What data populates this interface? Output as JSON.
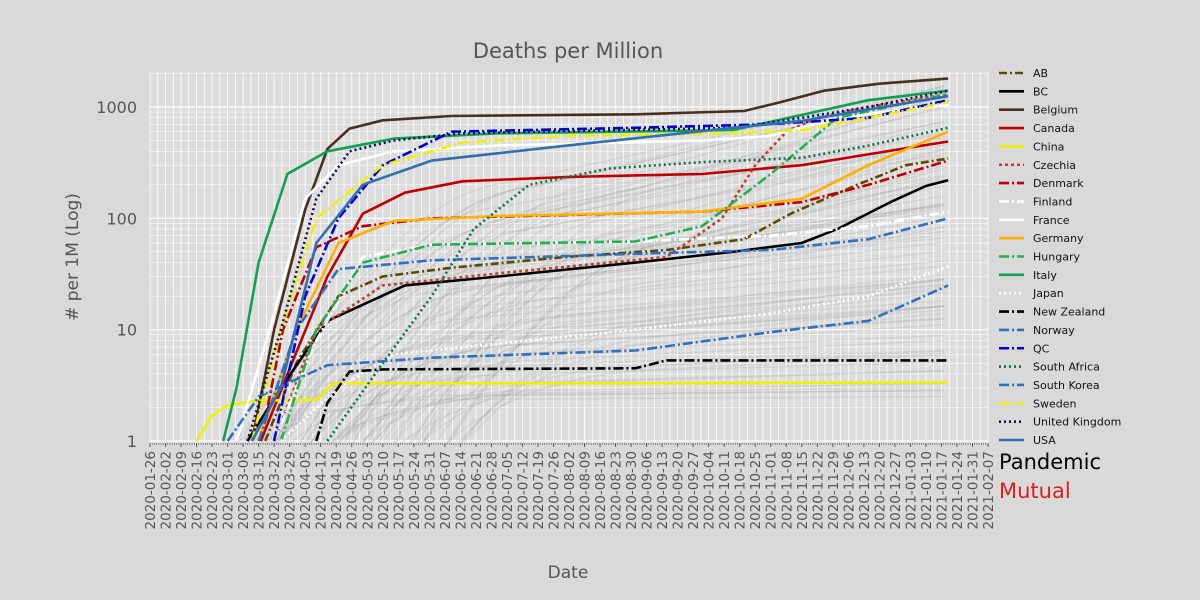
{
  "chart_data": {
    "type": "line",
    "title": "Deaths per Million",
    "xlabel": "Date",
    "ylabel": "# per 1M (Log)",
    "yscale": "log",
    "ylim": [
      1,
      2000
    ],
    "yticks": [
      "1",
      "10",
      "100",
      "1000"
    ],
    "xlim": [
      "2020-01-26",
      "2021-02-07"
    ],
    "xticks": [
      "2020-01-26",
      "2020-02-02",
      "2020-02-09",
      "2020-02-16",
      "2020-02-23",
      "2020-03-01",
      "2020-03-08",
      "2020-03-15",
      "2020-03-22",
      "2020-03-29",
      "2020-04-05",
      "2020-04-12",
      "2020-04-19",
      "2020-04-26",
      "2020-05-03",
      "2020-05-10",
      "2020-05-17",
      "2020-05-24",
      "2020-05-31",
      "2020-06-07",
      "2020-06-14",
      "2020-06-21",
      "2020-06-28",
      "2020-07-05",
      "2020-07-12",
      "2020-07-19",
      "2020-07-26",
      "2020-08-02",
      "2020-08-09",
      "2020-08-16",
      "2020-08-23",
      "2020-08-30",
      "2020-09-06",
      "2020-09-13",
      "2020-09-20",
      "2020-09-27",
      "2020-10-04",
      "2020-10-11",
      "2020-10-18",
      "2020-10-25",
      "2020-11-01",
      "2020-11-08",
      "2020-11-15",
      "2020-11-22",
      "2020-11-29",
      "2020-12-06",
      "2020-12-13",
      "2020-12-20",
      "2020-12-27",
      "2021-01-03",
      "2021-01-10",
      "2021-01-17",
      "2021-01-24",
      "2021-01-31",
      "2021-02-07"
    ],
    "grid": true,
    "legend_position": "right",
    "series": [
      {
        "name": "AB",
        "color": "#5c4a00",
        "dash": "8 3 2 3",
        "x": [
          "2020-03-18",
          "2020-04-01",
          "2020-04-20",
          "2020-05-10",
          "2020-06-10",
          "2020-08-01",
          "2020-09-15",
          "2020-10-20",
          "2020-11-10",
          "2020-12-10",
          "2021-01-01",
          "2021-01-20"
        ],
        "y": [
          1.0,
          5.0,
          20,
          30,
          36,
          45,
          52,
          65,
          110,
          200,
          300,
          345
        ]
      },
      {
        "name": "BC",
        "color": "#000000",
        "dash": "",
        "x": [
          "2020-03-10",
          "2020-03-25",
          "2020-04-15",
          "2020-05-20",
          "2020-07-01",
          "2020-09-01",
          "2020-10-15",
          "2020-11-15",
          "2020-12-01",
          "2020-12-25",
          "2021-01-10",
          "2021-01-20"
        ],
        "y": [
          1.0,
          3.0,
          12,
          25,
          30,
          40,
          50,
          60,
          80,
          140,
          195,
          220
        ]
      },
      {
        "name": "Belgium",
        "color": "#4a2e1e",
        "dash": "",
        "x": [
          "2020-03-12",
          "2020-03-22",
          "2020-04-05",
          "2020-04-15",
          "2020-04-25",
          "2020-05-10",
          "2020-06-10",
          "2020-09-01",
          "2020-10-20",
          "2020-11-05",
          "2020-11-25",
          "2020-12-20",
          "2021-01-20"
        ],
        "y": [
          1.0,
          10,
          120,
          420,
          640,
          760,
          830,
          860,
          920,
          1100,
          1400,
          1620,
          1800
        ]
      },
      {
        "name": "Canada",
        "color": "#c00000",
        "dash": "",
        "x": [
          "2020-03-16",
          "2020-03-30",
          "2020-04-15",
          "2020-05-01",
          "2020-05-20",
          "2020-06-15",
          "2020-08-01",
          "2020-10-01",
          "2020-11-15",
          "2020-12-20",
          "2021-01-20"
        ],
        "y": [
          1.0,
          5.0,
          30,
          110,
          170,
          215,
          235,
          250,
          300,
          390,
          490
        ]
      },
      {
        "name": "China",
        "color": "#f0f000",
        "dash": "",
        "x": [
          "2020-02-16",
          "2020-02-23",
          "2020-03-01",
          "2020-03-15",
          "2020-04-10",
          "2020-04-18",
          "2020-06-01",
          "2020-09-01",
          "2021-01-20"
        ],
        "y": [
          1.0,
          1.7,
          2.1,
          2.3,
          2.35,
          3.3,
          3.3,
          3.3,
          3.35
        ]
      },
      {
        "name": "Czechia",
        "color": "#c04030",
        "dash": "3 3",
        "x": [
          "2020-03-22",
          "2020-04-10",
          "2020-05-10",
          "2020-07-01",
          "2020-09-15",
          "2020-10-10",
          "2020-10-25",
          "2020-11-08",
          "2020-11-22",
          "2020-12-15",
          "2021-01-20"
        ],
        "y": [
          1.0,
          10,
          25,
          32,
          45,
          100,
          300,
          600,
          800,
          1000,
          1300
        ]
      },
      {
        "name": "Denmark",
        "color": "#c00000",
        "dash": "10 3 2 3",
        "x": [
          "2020-03-16",
          "2020-03-26",
          "2020-04-10",
          "2020-05-01",
          "2020-06-01",
          "2020-10-01",
          "2020-11-15",
          "2020-12-15",
          "2021-01-20"
        ],
        "y": [
          1.0,
          10,
          55,
          85,
          100,
          115,
          140,
          200,
          330
        ]
      },
      {
        "name": "Finland",
        "color": "#ffffff",
        "dash": "10 3 2 3",
        "x": [
          "2020-03-22",
          "2020-04-10",
          "2020-05-01",
          "2020-06-01",
          "2020-09-01",
          "2020-11-01",
          "2020-12-15",
          "2021-01-20"
        ],
        "y": [
          1.0,
          8,
          45,
          58,
          62,
          70,
          85,
          115
        ]
      },
      {
        "name": "France",
        "color": "#ffffff",
        "dash": "",
        "x": [
          "2020-03-05",
          "2020-03-20",
          "2020-04-05",
          "2020-04-20",
          "2020-05-15",
          "2020-07-01",
          "2020-10-01",
          "2020-11-01",
          "2020-12-01",
          "2021-01-20"
        ],
        "y": [
          1.0,
          10,
          150,
          300,
          400,
          450,
          500,
          550,
          800,
          1050
        ]
      },
      {
        "name": "Germany",
        "color": "#ffb000",
        "dash": "",
        "x": [
          "2020-03-15",
          "2020-04-01",
          "2020-04-20",
          "2020-05-15",
          "2020-07-01",
          "2020-10-01",
          "2020-11-15",
          "2020-12-15",
          "2021-01-20"
        ],
        "y": [
          1.0,
          10,
          60,
          95,
          105,
          115,
          150,
          300,
          600
        ]
      },
      {
        "name": "Hungary",
        "color": "#20b050",
        "dash": "10 3 2 3",
        "x": [
          "2020-03-25",
          "2020-04-10",
          "2020-05-01",
          "2020-06-01",
          "2020-09-01",
          "2020-10-01",
          "2020-11-01",
          "2020-12-01",
          "2021-01-20"
        ],
        "y": [
          1.0,
          10,
          40,
          58,
          62,
          85,
          250,
          800,
          1300
        ]
      },
      {
        "name": "Italy",
        "color": "#10a050",
        "dash": "",
        "x": [
          "2020-02-28",
          "2020-03-05",
          "2020-03-15",
          "2020-03-28",
          "2020-04-15",
          "2020-05-15",
          "2020-07-01",
          "2020-10-15",
          "2020-11-15",
          "2020-12-15",
          "2021-01-20"
        ],
        "y": [
          1.0,
          3,
          40,
          250,
          400,
          520,
          580,
          620,
          850,
          1150,
          1400
        ]
      },
      {
        "name": "Japan",
        "color": "#ffffff",
        "dash": "2 3",
        "x": [
          "2020-03-25",
          "2020-04-20",
          "2020-05-15",
          "2020-07-01",
          "2020-09-01",
          "2020-11-01",
          "2020-12-15",
          "2021-01-20"
        ],
        "y": [
          1.0,
          3,
          6,
          7.5,
          10,
          14,
          20,
          37
        ]
      },
      {
        "name": "New Zealand",
        "color": "#000000",
        "dash": "10 3 2 3",
        "x": [
          "2020-04-10",
          "2020-04-15",
          "2020-04-25",
          "2020-05-10",
          "2020-09-01",
          "2020-09-15",
          "2021-01-20"
        ],
        "y": [
          1.0,
          2.2,
          4.2,
          4.4,
          4.5,
          5.3,
          5.3
        ]
      },
      {
        "name": "Norway",
        "color": "#3070c0",
        "dash": "10 3 2 3",
        "x": [
          "2020-03-15",
          "2020-04-01",
          "2020-04-20",
          "2020-06-01",
          "2020-09-01",
          "2020-11-01",
          "2020-12-15",
          "2021-01-20"
        ],
        "y": [
          1.0,
          10,
          35,
          42,
          48,
          52,
          65,
          100
        ]
      },
      {
        "name": "QC",
        "color": "#0000e0",
        "dash": "10 3 2 3",
        "x": [
          "2020-03-22",
          "2020-04-05",
          "2020-04-20",
          "2020-05-10",
          "2020-06-10",
          "2020-09-01",
          "2020-11-01",
          "2020-12-15",
          "2021-01-20"
        ],
        "y": [
          1.0,
          20,
          100,
          300,
          600,
          650,
          700,
          800,
          1150
        ]
      },
      {
        "name": "South Africa",
        "color": "#107040",
        "dash": "2 3",
        "x": [
          "2020-04-15",
          "2020-05-10",
          "2020-06-01",
          "2020-06-20",
          "2020-07-15",
          "2020-08-20",
          "2020-10-01",
          "2020-11-15",
          "2020-12-15",
          "2021-01-20"
        ],
        "y": [
          1.0,
          5,
          20,
          80,
          200,
          280,
          320,
          350,
          450,
          650
        ]
      },
      {
        "name": "South Korea",
        "color": "#3070c0",
        "dash": "10 3 2 3",
        "x": [
          "2020-03-01",
          "2020-03-15",
          "2020-04-15",
          "2020-06-01",
          "2020-09-01",
          "2020-11-01",
          "2020-12-15",
          "2021-01-20"
        ],
        "y": [
          1.0,
          2.5,
          4.8,
          5.6,
          6.5,
          9.5,
          12,
          25
        ]
      },
      {
        "name": "Sweden",
        "color": "#f0f000",
        "dash": "10 3 2 3",
        "x": [
          "2020-03-12",
          "2020-03-25",
          "2020-04-10",
          "2020-05-10",
          "2020-06-15",
          "2020-08-01",
          "2020-10-15",
          "2020-11-15",
          "2020-12-15",
          "2021-01-20"
        ],
        "y": [
          1.0,
          10,
          100,
          300,
          480,
          550,
          580,
          620,
          800,
          1100
        ]
      },
      {
        "name": "United Kingdom",
        "color": "#101060",
        "dash": "2 3",
        "x": [
          "2020-03-10",
          "2020-03-25",
          "2020-04-10",
          "2020-04-25",
          "2020-05-15",
          "2020-06-15",
          "2020-10-15",
          "2020-11-15",
          "2020-12-15",
          "2021-01-20"
        ],
        "y": [
          1.0,
          10,
          150,
          400,
          500,
          580,
          650,
          800,
          1000,
          1400
        ]
      },
      {
        "name": "USA",
        "color": "#3070b0",
        "dash": "",
        "x": [
          "2020-03-12",
          "2020-03-25",
          "2020-04-10",
          "2020-05-01",
          "2020-06-01",
          "2020-08-01",
          "2020-10-15",
          "2020-11-15",
          "2020-12-15",
          "2021-01-20"
        ],
        "y": [
          1.0,
          3,
          60,
          200,
          330,
          450,
          650,
          750,
          950,
          1250
        ]
      }
    ]
  },
  "branding": {
    "line1": "Pandemic",
    "line2": "Mutual",
    "line1_color": "#000000",
    "line2_color": "#d62020"
  }
}
